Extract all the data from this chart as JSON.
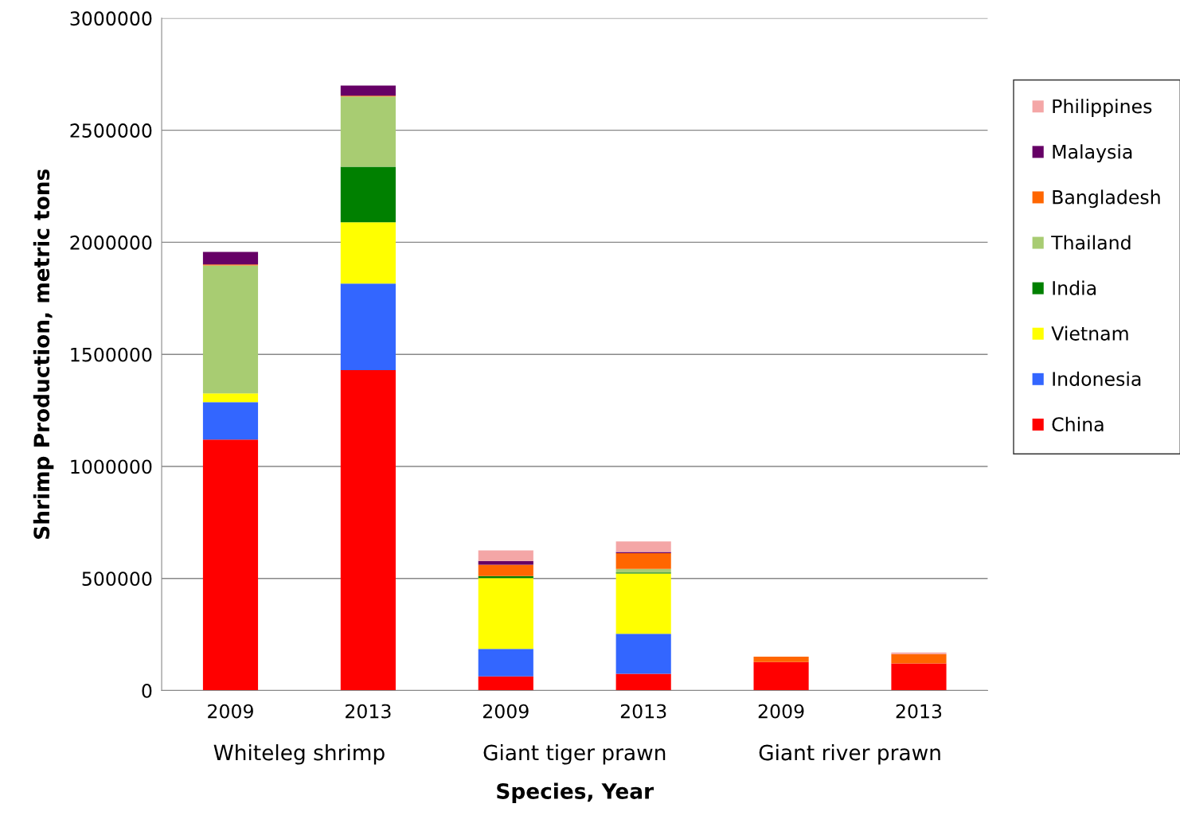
{
  "chart_data": {
    "type": "bar",
    "stacked": true,
    "xlabel": "Species, Year",
    "ylabel": "Shrimp Production, metric tons",
    "categories": [
      "2009",
      "2013",
      "2009",
      "2013",
      "2009",
      "2013"
    ],
    "annotations": [
      "Whiteleg shrimp",
      "Giant tiger prawn",
      "Giant river prawn"
    ],
    "series": [
      {
        "name": "China",
        "color": "#ff0000",
        "values": [
          1120000,
          1430000,
          63000,
          75000,
          127000,
          121000
        ]
      },
      {
        "name": "Indonesia",
        "color": "#3366ff",
        "values": [
          167000,
          386000,
          123000,
          178000,
          0,
          0
        ]
      },
      {
        "name": "Vietnam",
        "color": "#ffff00",
        "values": [
          39000,
          273000,
          316000,
          269000,
          0,
          0
        ]
      },
      {
        "name": "India",
        "color": "#008000",
        "values": [
          0,
          248000,
          9000,
          5000,
          0,
          0
        ]
      },
      {
        "name": "Thailand",
        "color": "#a8cc72",
        "values": [
          571000,
          314000,
          0,
          16000,
          0,
          0
        ]
      },
      {
        "name": "Bangladesh",
        "color": "#ff6600",
        "values": [
          4000,
          3000,
          50000,
          70000,
          24000,
          42000
        ]
      },
      {
        "name": "Malaysia",
        "color": "#660066",
        "values": [
          56000,
          45000,
          17000,
          5000,
          null,
          0
        ]
      },
      {
        "name": "Philippines",
        "color": "#f4a6a6",
        "values": [
          null,
          null,
          47000,
          47000,
          null,
          7000
        ]
      }
    ],
    "ylim": [
      0,
      3000000
    ],
    "yticks": [
      0,
      500000,
      1000000,
      1500000,
      2000000,
      2500000,
      3000000
    ],
    "grid": "y",
    "legend": "right"
  }
}
